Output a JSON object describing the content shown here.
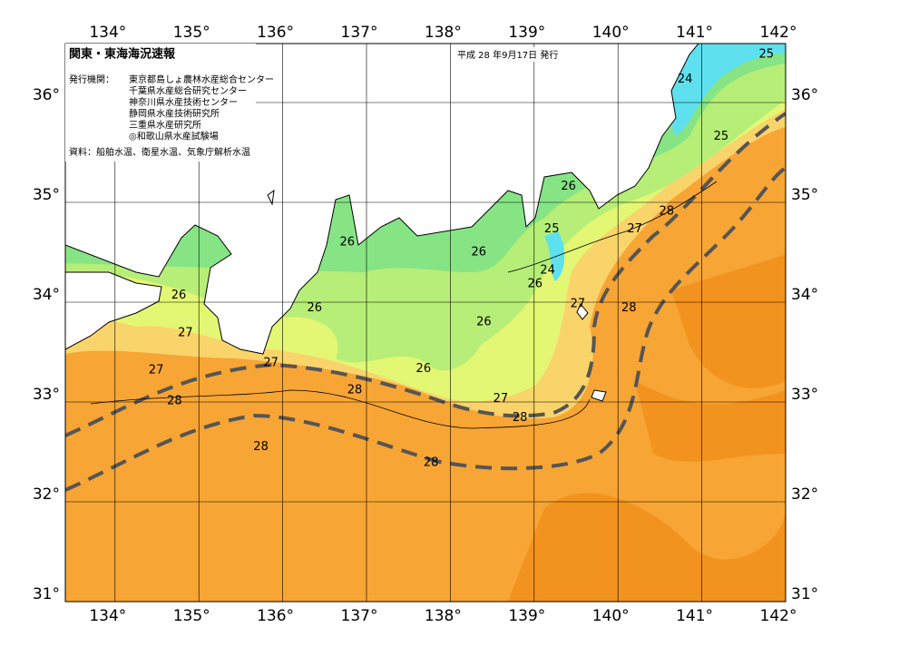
{
  "map": {
    "title": "関東・東海海況速報",
    "date": "平成 28 年9月17日 発行",
    "issuer_label": "発行機関：",
    "agencies": [
      "東京都島しょ農林水産総合センター",
      "千葉県水産総合研究センター",
      "神奈川県水産技術センター",
      "静岡県水産技術研究所",
      "三重県水産研究所",
      "◎和歌山県水産試験場"
    ],
    "source": "資料：船舶水温、衛星水温、気象庁解析水温",
    "lon_ticks": [
      {
        "value": 134,
        "label": "134°"
      },
      {
        "value": 135,
        "label": "135°"
      },
      {
        "value": 136,
        "label": "136°"
      },
      {
        "value": 137,
        "label": "137°"
      },
      {
        "value": 138,
        "label": "138°"
      },
      {
        "value": 139,
        "label": "139°"
      },
      {
        "value": 140,
        "label": "140°"
      },
      {
        "value": 141,
        "label": "141°"
      },
      {
        "value": 142,
        "label": "142°"
      }
    ],
    "lat_ticks": [
      {
        "value": 31,
        "label": "31°"
      },
      {
        "value": 32,
        "label": "32°"
      },
      {
        "value": 33,
        "label": "33°"
      },
      {
        "value": 34,
        "label": "34°"
      },
      {
        "value": 35,
        "label": "35°"
      },
      {
        "value": 36,
        "label": "36°"
      }
    ],
    "contour_labels": [
      {
        "text": "25",
        "lon": 141.77,
        "lat": 36.48
      },
      {
        "text": "24",
        "lon": 140.8,
        "lat": 36.23
      },
      {
        "text": "25",
        "lon": 141.23,
        "lat": 35.66
      },
      {
        "text": "26",
        "lon": 139.41,
        "lat": 35.16
      },
      {
        "text": "27",
        "lon": 140.2,
        "lat": 34.73
      },
      {
        "text": "28",
        "lon": 140.58,
        "lat": 34.91
      },
      {
        "text": "25",
        "lon": 139.21,
        "lat": 34.73
      },
      {
        "text": "26",
        "lon": 138.34,
        "lat": 34.5
      },
      {
        "text": "26",
        "lon": 136.77,
        "lat": 34.6
      },
      {
        "text": "24",
        "lon": 139.16,
        "lat": 34.32
      },
      {
        "text": "26",
        "lon": 139.01,
        "lat": 34.18
      },
      {
        "text": "27",
        "lon": 139.52,
        "lat": 33.98
      },
      {
        "text": "28",
        "lon": 140.13,
        "lat": 33.94
      },
      {
        "text": "26",
        "lon": 134.76,
        "lat": 34.07
      },
      {
        "text": "26",
        "lon": 136.38,
        "lat": 33.94
      },
      {
        "text": "26",
        "lon": 138.4,
        "lat": 33.8
      },
      {
        "text": "27",
        "lon": 134.84,
        "lat": 33.69
      },
      {
        "text": "27",
        "lon": 134.49,
        "lat": 33.32
      },
      {
        "text": "27",
        "lon": 135.86,
        "lat": 33.39
      },
      {
        "text": "26",
        "lon": 137.68,
        "lat": 33.33
      },
      {
        "text": "28",
        "lon": 136.86,
        "lat": 33.12
      },
      {
        "text": "28",
        "lon": 134.71,
        "lat": 33.01
      },
      {
        "text": "27",
        "lon": 138.6,
        "lat": 33.03
      },
      {
        "text": "28",
        "lon": 138.83,
        "lat": 32.84
      },
      {
        "text": "28",
        "lon": 135.74,
        "lat": 32.55
      },
      {
        "text": "28",
        "lon": 137.77,
        "lat": 32.39
      }
    ]
  }
}
